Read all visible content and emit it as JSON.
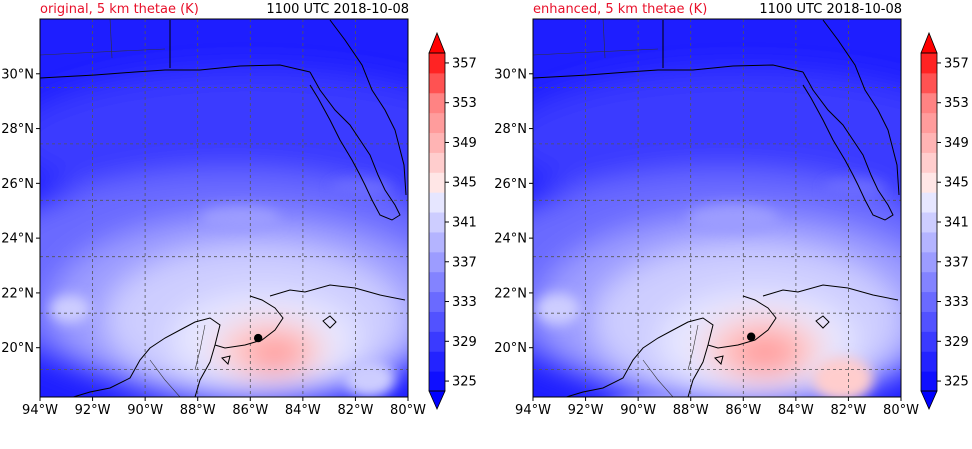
{
  "panels": [
    {
      "title": "original, 5 km thetae (K)",
      "time": "1100 UTC 2018-10-08",
      "marker": {
        "lon": -85.7,
        "lat": 20.35
      }
    },
    {
      "title": "enhanced, 5 km thetae (K)",
      "time": "1100 UTC 2018-10-08",
      "marker": {
        "lon": -85.7,
        "lat": 20.4
      }
    }
  ],
  "map": {
    "lon_range": [
      -94,
      -80
    ],
    "lat_range": [
      18.2,
      32
    ],
    "lon_ticks": [
      "94°W",
      "92°W",
      "90°W",
      "88°W",
      "86°W",
      "84°W",
      "82°W",
      "80°W"
    ],
    "lon_tick_values": [
      -94,
      -92,
      -90,
      -88,
      -86,
      -84,
      -82,
      -80
    ],
    "lat_ticks": [
      "20°N",
      "22°N",
      "24°N",
      "26°N",
      "28°N",
      "30°N"
    ],
    "lat_tick_values": [
      20,
      22,
      24,
      26,
      28,
      30
    ]
  },
  "colorbar": {
    "labels": [
      "325",
      "329",
      "333",
      "337",
      "341",
      "345",
      "349",
      "353",
      "357"
    ],
    "levels": [
      325,
      327,
      329,
      331,
      333,
      335,
      337,
      339,
      341,
      343,
      345,
      347,
      349,
      351,
      353,
      355,
      357
    ],
    "colors": [
      "#0f0fff",
      "#2323ff",
      "#3a3aff",
      "#5252ff",
      "#6a6aff",
      "#8383ff",
      "#9c9cff",
      "#b4b4ff",
      "#cdcdff",
      "#e6e6ff",
      "#ffe6e6",
      "#ffcdcd",
      "#ffb4b4",
      "#ff9c9c",
      "#ff8383",
      "#ff5252",
      "#ff2323"
    ],
    "under_color": "#0000ff",
    "over_color": "#ff0000"
  }
}
